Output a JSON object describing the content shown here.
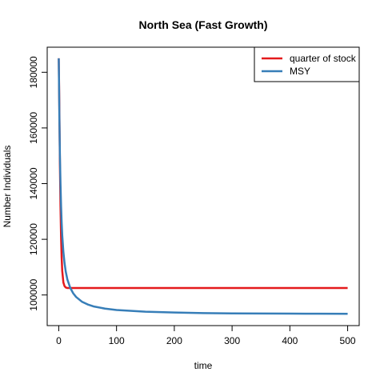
{
  "chart_data": {
    "type": "line",
    "title": "North Sea (Fast Growth)",
    "xlabel": "time",
    "ylabel": "Number Individuals",
    "xlim": [
      -20,
      520
    ],
    "ylim": [
      89000,
      189000
    ],
    "x_ticks": [
      0,
      100,
      200,
      300,
      400,
      500
    ],
    "y_ticks": [
      100000,
      120000,
      140000,
      160000,
      180000
    ],
    "x_tick_labels": [
      "0",
      "100",
      "200",
      "300",
      "400",
      "500"
    ],
    "y_tick_labels": [
      "100000",
      "120000",
      "140000",
      "160000",
      "180000"
    ],
    "legend_position": "top-right",
    "series": [
      {
        "name": "quarter of stock",
        "color": "#E41A1C",
        "x": [
          0,
          1,
          2,
          3,
          4,
          5,
          6,
          8,
          10,
          12,
          15,
          20,
          25,
          30,
          40,
          60,
          100,
          200,
          300,
          400,
          500
        ],
        "y": [
          185000,
          168000,
          147000,
          132000,
          121000,
          113500,
          108700,
          104500,
          103200,
          102700,
          102500,
          102500,
          102500,
          102500,
          102500,
          102500,
          102500,
          102500,
          102500,
          102500,
          102500
        ]
      },
      {
        "name": "MSY",
        "color": "#377EB8",
        "x": [
          0,
          1,
          2,
          3,
          4,
          5,
          6,
          8,
          10,
          12,
          15,
          20,
          25,
          30,
          40,
          50,
          60,
          80,
          100,
          150,
          200,
          250,
          300,
          350,
          400,
          450,
          500
        ],
        "y": [
          185000,
          165000,
          150000,
          140000,
          132000,
          126000,
          121500,
          115500,
          111500,
          108500,
          105500,
          102500,
          100600,
          99300,
          97600,
          96600,
          95900,
          95100,
          94600,
          94000,
          93700,
          93500,
          93400,
          93350,
          93300,
          93280,
          93250
        ]
      }
    ]
  }
}
